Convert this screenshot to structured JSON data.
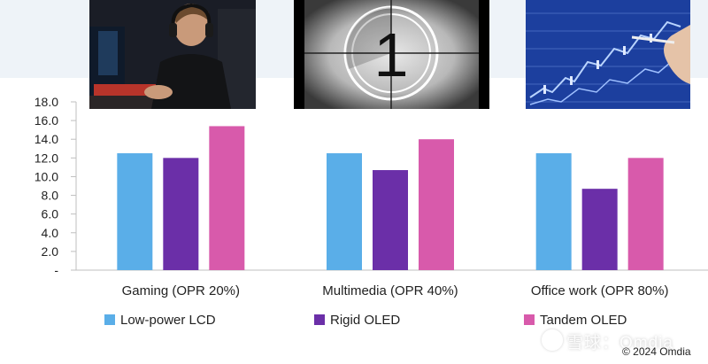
{
  "chart_data": {
    "type": "bar",
    "categories": [
      "Gaming (OPR 20%)",
      "Multimedia (OPR 40%)",
      "Office work (OPR 80%)"
    ],
    "series": [
      {
        "name": "Low-power LCD",
        "color": "#5aaee8",
        "values": [
          12.5,
          12.5,
          12.5
        ]
      },
      {
        "name": "Rigid OLED",
        "color": "#6b2fa8",
        "values": [
          12.0,
          10.7,
          8.7
        ]
      },
      {
        "name": "Tandem OLED",
        "color": "#d85aab",
        "values": [
          15.4,
          14.0,
          12.0
        ]
      }
    ],
    "ylim": [
      0,
      18
    ],
    "yticks": [
      "-",
      "2.0",
      "4.0",
      "6.0",
      "8.0",
      "10.0",
      "12.0",
      "14.0",
      "16.0",
      "18.0"
    ],
    "grid": false,
    "legend_position": "bottom"
  },
  "photos": [
    {
      "icon": "gamer-photo-icon"
    },
    {
      "icon": "film-countdown-photo-icon"
    },
    {
      "icon": "stock-chart-photo-icon"
    }
  ],
  "watermark": "雪球：Omdia",
  "copyright": "© 2024 Omdia"
}
